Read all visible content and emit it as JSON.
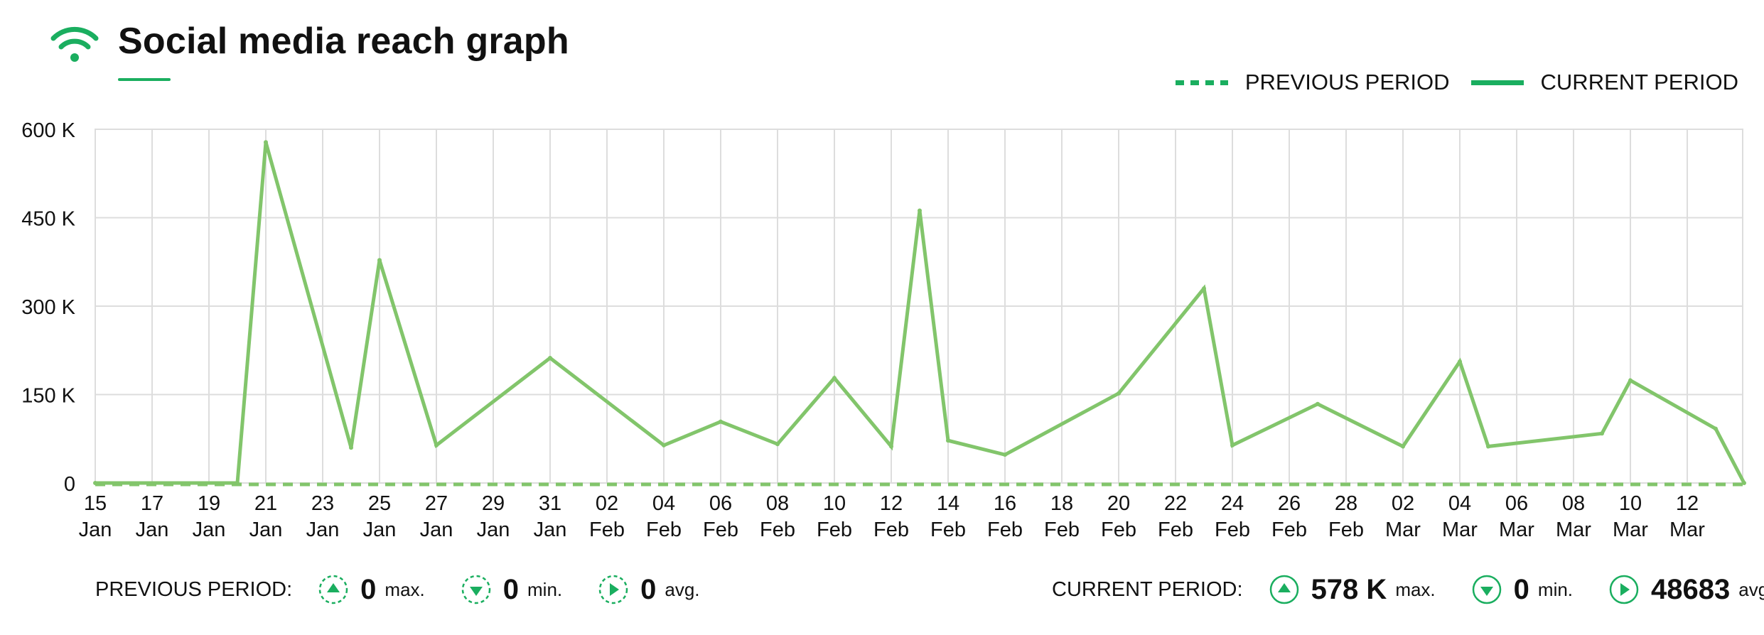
{
  "header": {
    "title": "Social media reach graph",
    "icon": "wifi-icon"
  },
  "colors": {
    "accent": "#1aae5f",
    "line": "#82c56b",
    "grid": "#dddddd",
    "text": "#111111"
  },
  "legend": {
    "previous_label": "PREVIOUS PERIOD",
    "current_label": "CURRENT PERIOD"
  },
  "chart_data": {
    "type": "line",
    "title": "Social media reach graph",
    "xlabel": "",
    "ylabel": "",
    "ylim": [
      0,
      600000
    ],
    "yticks": [
      0,
      150000,
      300000,
      450000,
      600000
    ],
    "ytick_labels": [
      "0",
      "150 K",
      "300 K",
      "450 K",
      "600 K"
    ],
    "xticks": [
      "15 Jan",
      "17 Jan",
      "19 Jan",
      "21 Jan",
      "23 Jan",
      "25 Jan",
      "27 Jan",
      "29 Jan",
      "31 Jan",
      "02 Feb",
      "04 Feb",
      "06 Feb",
      "08 Feb",
      "10 Feb",
      "12 Feb",
      "14 Feb",
      "16 Feb",
      "18 Feb",
      "20 Feb",
      "22 Feb",
      "24 Feb",
      "26 Feb",
      "28 Feb",
      "02 Mar",
      "04 Mar",
      "06 Mar",
      "08 Mar",
      "10 Mar",
      "12 Mar"
    ],
    "grid": true,
    "legend_position": "top-right",
    "series": [
      {
        "name": "PREVIOUS PERIOD",
        "style": "dashed",
        "x": [
          "2021-01-15",
          "2021-03-14"
        ],
        "y": [
          0,
          0
        ]
      },
      {
        "name": "CURRENT PERIOD",
        "style": "solid",
        "x": [
          "2021-01-15",
          "2021-01-20",
          "2021-01-21",
          "2021-01-24",
          "2021-01-25",
          "2021-01-27",
          "2021-01-31",
          "2021-02-04",
          "2021-02-06",
          "2021-02-08",
          "2021-02-10",
          "2021-02-12",
          "2021-02-13",
          "2021-02-14",
          "2021-02-16",
          "2021-02-20",
          "2021-02-23",
          "2021-02-24",
          "2021-02-27",
          "2021-03-02",
          "2021-03-04",
          "2021-03-05",
          "2021-03-09",
          "2021-03-10",
          "2021-03-13",
          "2021-03-14"
        ],
        "y": [
          0,
          0,
          578000,
          60000,
          378000,
          64000,
          212000,
          64000,
          104000,
          66000,
          178000,
          62000,
          462000,
          72000,
          48000,
          152000,
          330000,
          64000,
          134000,
          62000,
          206000,
          62000,
          84000,
          174000,
          92000,
          0
        ]
      }
    ]
  },
  "footer": {
    "previous": {
      "label": "PREVIOUS PERIOD:",
      "max_value": "0",
      "max_unit": "max.",
      "min_value": "0",
      "min_unit": "min.",
      "avg_value": "0",
      "avg_unit": "avg."
    },
    "current": {
      "label": "CURRENT PERIOD:",
      "max_value": "578 K",
      "max_unit": "max.",
      "min_value": "0",
      "min_unit": "min.",
      "avg_value": "48683",
      "avg_unit": "avg."
    }
  }
}
